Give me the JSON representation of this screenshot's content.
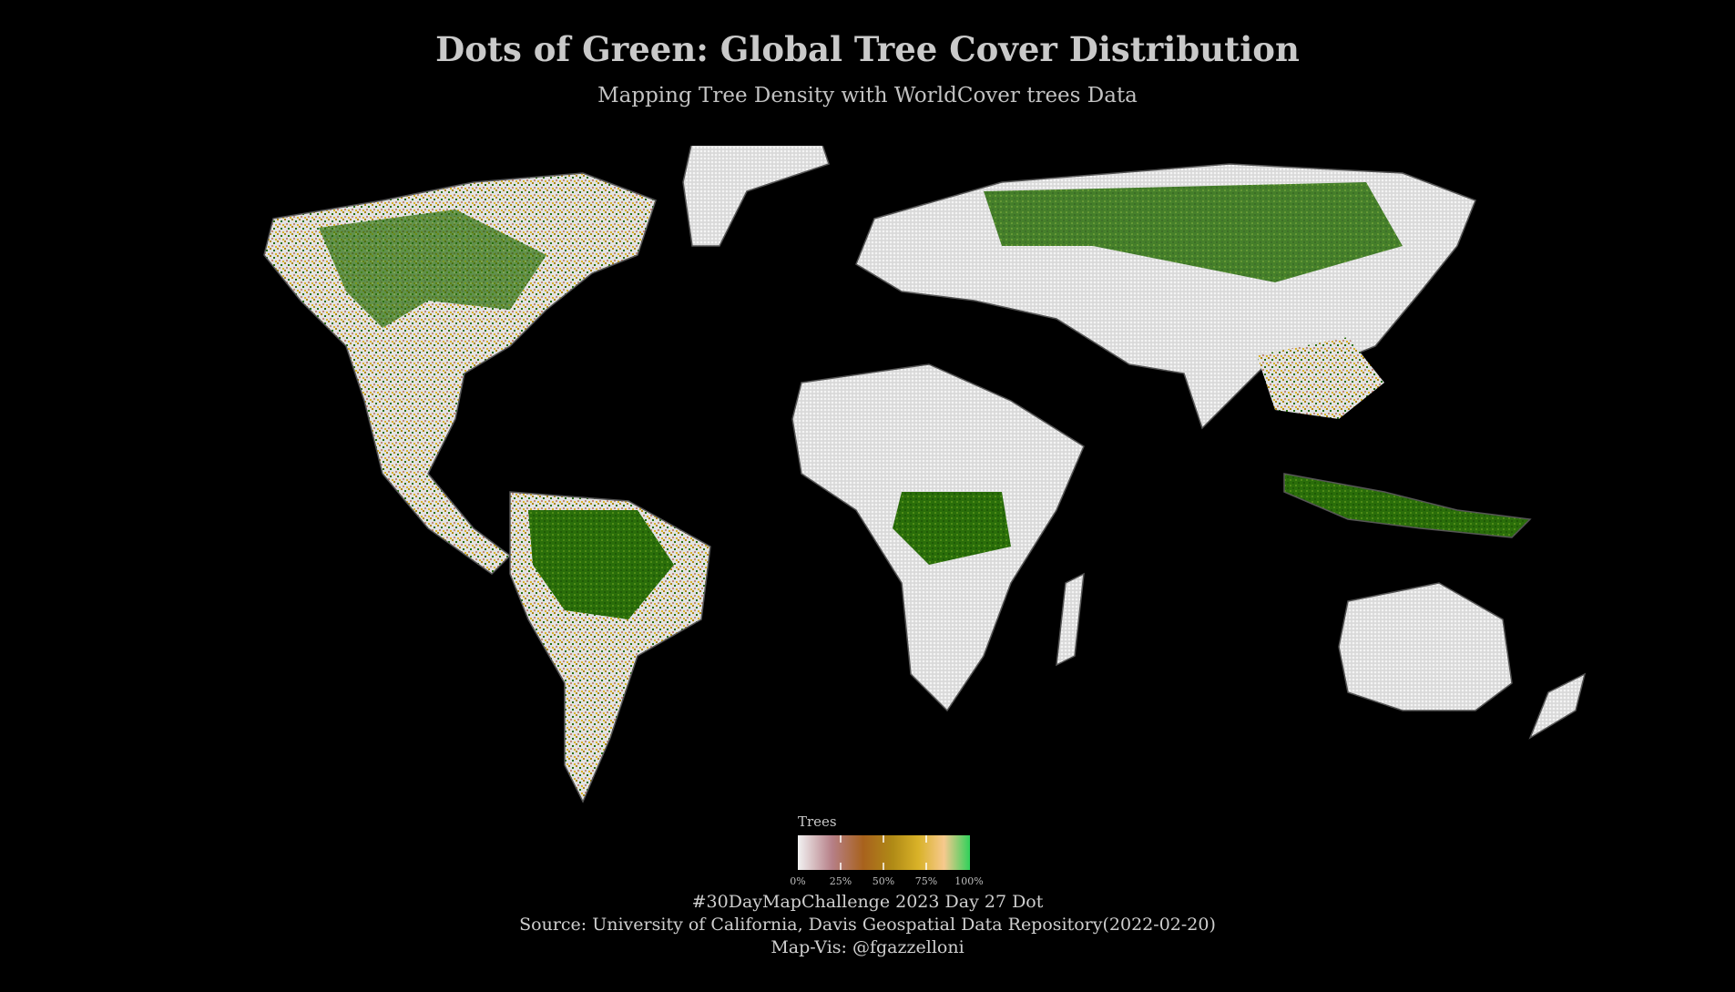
{
  "title": "Dots of Green: Global Tree Cover Distribution",
  "subtitle": "Mapping Tree Density with WorldCover trees Data",
  "legend": {
    "title": "Trees",
    "ticks": [
      "0%",
      "25%",
      "50%",
      "75%",
      "100%"
    ],
    "colors": [
      "#f2f2f2",
      "#b67f87",
      "#a8621d",
      "#b08a16",
      "#d9b228",
      "#f6c98e",
      "#2fd15a"
    ]
  },
  "captions": {
    "line1": "#30DayMapChallenge 2023 Day 27 Dot",
    "line2": "Source: University of California, Davis Geospatial Data Repository(2022-02-20)",
    "line3": "Map-Vis: @fgazzelloni"
  },
  "colors": {
    "background": "#000000",
    "land": "#e6e6e6",
    "border": "#555555",
    "forest_dense": "#2a6e0a",
    "forest_mid": "#b08a16",
    "forest_low": "#c08a7a"
  }
}
